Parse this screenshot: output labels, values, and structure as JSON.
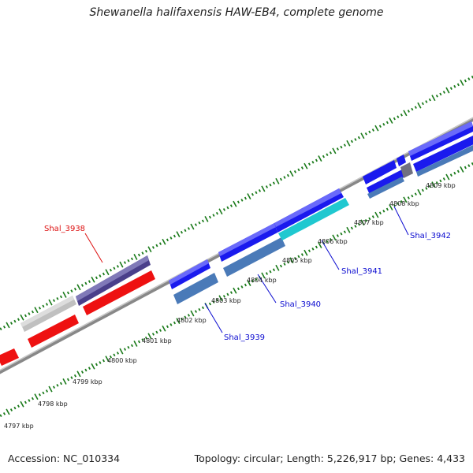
{
  "title": "Shewanella halifaxensis HAW-EB4, complete genome",
  "footer": {
    "accession": "Accession: NC_010334",
    "summary": "Topology: circular; Length: 5,226,917 bp; Genes: 4,433"
  },
  "colors": {
    "backbone": "#8a8a8a",
    "tick": "#1a7a1a",
    "gene_forward_blue": "#1a1aee",
    "gene_forward_purple": "#4a3f8a",
    "gene_reverse_red": "#ee1111",
    "gene_grey": "#c0c0c0",
    "gene_steel": "#4a7ab8",
    "gene_cyan": "#20c8d0",
    "gene_dark_grey": "#707080",
    "label_red": "#dd1111",
    "label_blue": "#0a0ad0"
  },
  "kbp_labels": [
    "4797 kbp",
    "4798 kbp",
    "4799 kbp",
    "4800 kbp",
    "4801 kbp",
    "4802 kbp",
    "4803 kbp",
    "4804 kbp",
    "4805 kbp",
    "4806 kbp",
    "4807 kbp",
    "4808 kbp",
    "4809 kbp"
  ],
  "genes": [
    {
      "label": "Shal_3938",
      "color": "label_red"
    },
    {
      "label": "Shal_3939",
      "color": "label_blue"
    },
    {
      "label": "Shal_3940",
      "color": "label_blue"
    },
    {
      "label": "Shal_3941",
      "color": "label_blue"
    },
    {
      "label": "Shal_3942",
      "color": "label_blue"
    }
  ]
}
